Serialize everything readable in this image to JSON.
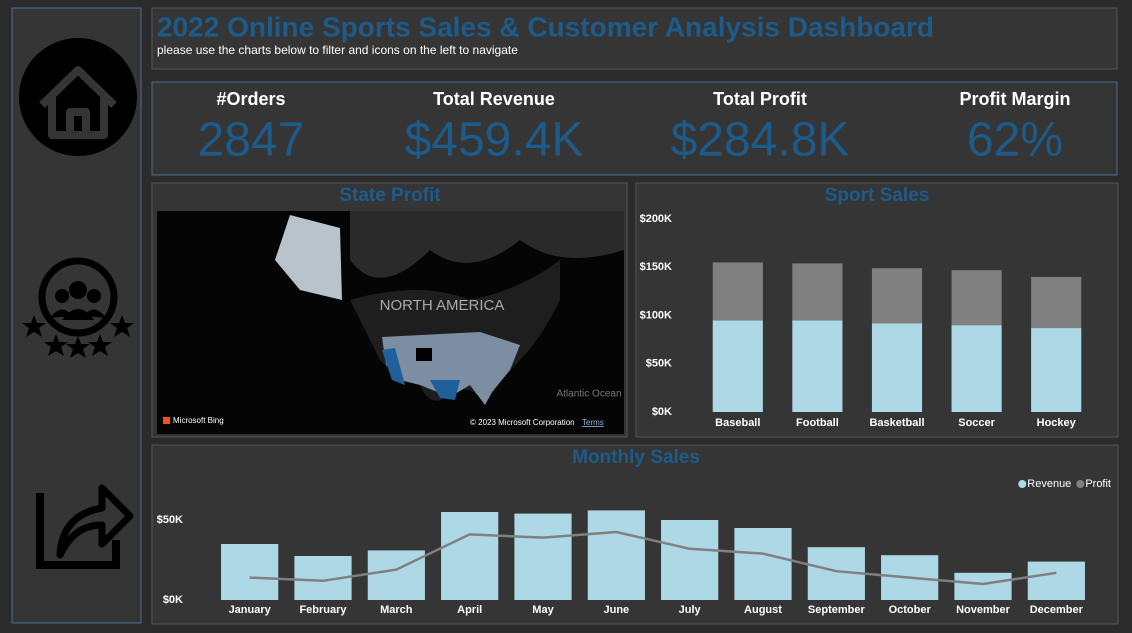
{
  "header": {
    "title": "2022 Online Sports Sales & Customer Analysis Dashboard",
    "subtitle": "please use the charts below to filter and icons on the left to navigate"
  },
  "kpis": [
    {
      "label": "#Orders",
      "value": "2847"
    },
    {
      "label": "Total Revenue",
      "value": "$459.4K"
    },
    {
      "label": "Total Profit",
      "value": "$284.8K"
    },
    {
      "label": "Profit Margin",
      "value": "62%"
    }
  ],
  "map": {
    "title": "State Profit",
    "region_label": "NORTH AMERICA",
    "ocean_label": "Atlantic Ocean",
    "provider": "Microsoft Bing",
    "copyright": "© 2023 Microsoft Corporation",
    "terms": "Terms"
  },
  "chart_data": [
    {
      "type": "stacked_bar",
      "title": "Sport Sales",
      "categories": [
        "Baseball",
        "Football",
        "Basketball",
        "Soccer",
        "Hockey"
      ],
      "series": [
        {
          "name": "Revenue",
          "color": "#add8e6",
          "values": [
            95000,
            95000,
            92000,
            90000,
            87000
          ]
        },
        {
          "name": "Profit",
          "color": "#808080",
          "values": [
            60000,
            59000,
            57000,
            57000,
            53000
          ]
        }
      ],
      "ylim": [
        0,
        200000
      ],
      "yticks": [
        {
          "value": 0,
          "label": "$0K"
        },
        {
          "value": 50000,
          "label": "$50K"
        },
        {
          "value": 100000,
          "label": "$100K"
        },
        {
          "value": 150000,
          "label": "$150K"
        },
        {
          "value": 200000,
          "label": "$200K"
        }
      ]
    },
    {
      "type": "bar_line",
      "title": "Monthly Sales",
      "categories": [
        "January",
        "February",
        "March",
        "April",
        "May",
        "June",
        "July",
        "August",
        "September",
        "October",
        "November",
        "December"
      ],
      "series": [
        {
          "name": "Revenue",
          "color": "#add8e6",
          "values": [
            35000,
            27500,
            31000,
            55000,
            54000,
            56000,
            50000,
            45000,
            33000,
            28000,
            17000,
            24000
          ]
        },
        {
          "name": "Profit",
          "color": "#808080",
          "values": [
            14000,
            12000,
            19000,
            41000,
            39000,
            42500,
            32000,
            29000,
            18000,
            14000,
            10000,
            17000
          ]
        }
      ],
      "ylim": [
        0,
        60000
      ],
      "yticks": [
        {
          "value": 0,
          "label": "$0K"
        },
        {
          "value": 50000,
          "label": "$50K"
        }
      ],
      "legend": "top-right"
    }
  ]
}
